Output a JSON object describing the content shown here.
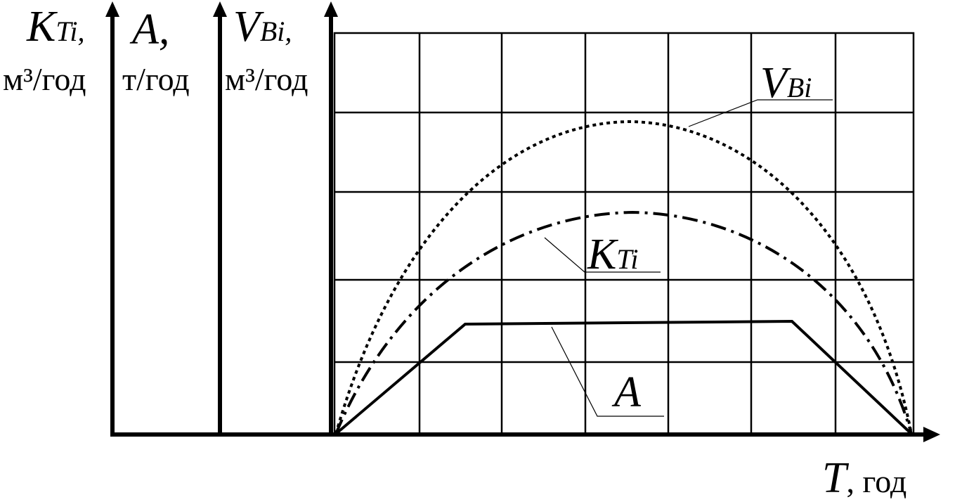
{
  "axes": [
    {
      "symbol": "K",
      "subscript": "Ti",
      "comma": ",",
      "unit": "м³/год"
    },
    {
      "symbol": "A",
      "subscript": "",
      "comma": ",",
      "unit": "т/год"
    },
    {
      "symbol": "V",
      "subscript": "Bi",
      "comma": ",",
      "unit": "м³/год"
    }
  ],
  "curves": [
    {
      "symbol": "V",
      "subscript": "Bi"
    },
    {
      "symbol": "K",
      "subscript": "Ti"
    },
    {
      "symbol": "A"
    }
  ],
  "x_axis": {
    "symbol": "T",
    "unit": ", год"
  }
}
